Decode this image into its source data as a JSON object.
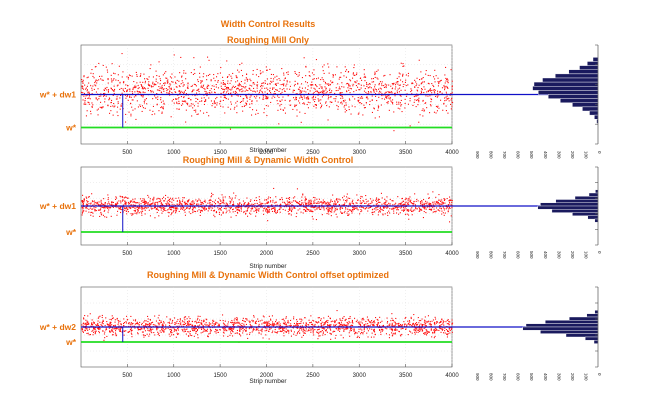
{
  "header": {
    "title": "Width Control Results"
  },
  "colors": {
    "label_orange": "#e8720c",
    "scatter_red": "#ff1010",
    "mean_blue": "#1010c8",
    "target_green": "#22dd22",
    "hist_navy": "#1a1a5e",
    "grid": "#d8d8d8",
    "axis": "#555555"
  },
  "chart_data": [
    {
      "type": "scatter",
      "title": "Roughing Mill Only",
      "xlabel": "Strip number",
      "xlim": [
        0,
        4000
      ],
      "xticks": [
        500,
        1000,
        1500,
        2000,
        2500,
        3000,
        3500,
        4000
      ],
      "ylim": [
        -2.4,
        2.4
      ],
      "y_markers": [
        {
          "label": "w* + dw1",
          "value": 0.0,
          "kind": "mean"
        },
        {
          "label": "w*",
          "value": -1.6,
          "kind": "target"
        }
      ],
      "series": [
        {
          "values_mean": 0.2,
          "values_sd": 0.55,
          "n_points": 1700
        }
      ],
      "histogram": {
        "bin_centers": [
          1.7,
          1.5,
          1.3,
          1.1,
          0.9,
          0.7,
          0.5,
          0.3,
          0.1,
          -0.1,
          -0.3,
          -0.5,
          -0.7,
          -0.9,
          -1.1,
          -1.3
        ],
        "counts": [
          35,
          75,
          130,
          205,
          300,
          390,
          450,
          460,
          420,
          350,
          265,
          180,
          110,
          60,
          25,
          10
        ],
        "xlim": [
          900,
          0
        ],
        "ticks": [
          "900",
          "800",
          "700",
          "600",
          "500",
          "400",
          "300",
          "200",
          "100",
          "0"
        ]
      }
    },
    {
      "type": "scatter",
      "title": "Roughing Mill & Dynamic Width Control",
      "xlabel": "Strip number",
      "xlim": [
        0,
        4000
      ],
      "xticks": [
        500,
        1000,
        1500,
        2000,
        2500,
        3000,
        3500,
        4000
      ],
      "ylim": [
        -2.4,
        2.4
      ],
      "y_markers": [
        {
          "label": "w* + dw1",
          "value": 0.0,
          "kind": "mean"
        },
        {
          "label": "w*",
          "value": -1.6,
          "kind": "target"
        }
      ],
      "series": [
        {
          "values_mean": 0.05,
          "values_sd": 0.28,
          "n_points": 1700
        }
      ],
      "histogram": {
        "bin_centers": [
          0.9,
          0.7,
          0.5,
          0.3,
          0.1,
          -0.1,
          -0.3,
          -0.5,
          -0.7,
          -0.9
        ],
        "counts": [
          20,
          70,
          180,
          330,
          450,
          470,
          360,
          200,
          80,
          25
        ],
        "xlim": [
          1000,
          0
        ],
        "ticks": [
          "900",
          "800",
          "700",
          "600",
          "500",
          "400",
          "300",
          "200",
          "100",
          "0"
        ]
      }
    },
    {
      "type": "scatter",
      "title": "Roughing Mill & Dynamic Width Control offset optimized",
      "xlabel": "Strip number",
      "xlim": [
        0,
        4000
      ],
      "xticks": [
        500,
        1000,
        1500,
        2000,
        2500,
        3000,
        3500,
        4000
      ],
      "ylim": [
        -2.4,
        2.4
      ],
      "y_markers": [
        {
          "label": "w* + dw2",
          "value": 0.0,
          "kind": "mean"
        },
        {
          "label": "w*",
          "value": -0.9,
          "kind": "target"
        }
      ],
      "series": [
        {
          "values_mean": 0.05,
          "values_sd": 0.28,
          "n_points": 1700
        }
      ],
      "histogram": {
        "bin_centers": [
          0.9,
          0.7,
          0.5,
          0.3,
          0.1,
          -0.1,
          -0.3,
          -0.5,
          -0.7,
          -0.9
        ],
        "counts": [
          20,
          70,
          180,
          330,
          450,
          470,
          360,
          200,
          80,
          25
        ],
        "xlim": [
          800,
          0
        ],
        "ticks": [
          "900",
          "800",
          "700",
          "600",
          "500",
          "400",
          "300",
          "200",
          "100",
          "0"
        ]
      }
    }
  ]
}
